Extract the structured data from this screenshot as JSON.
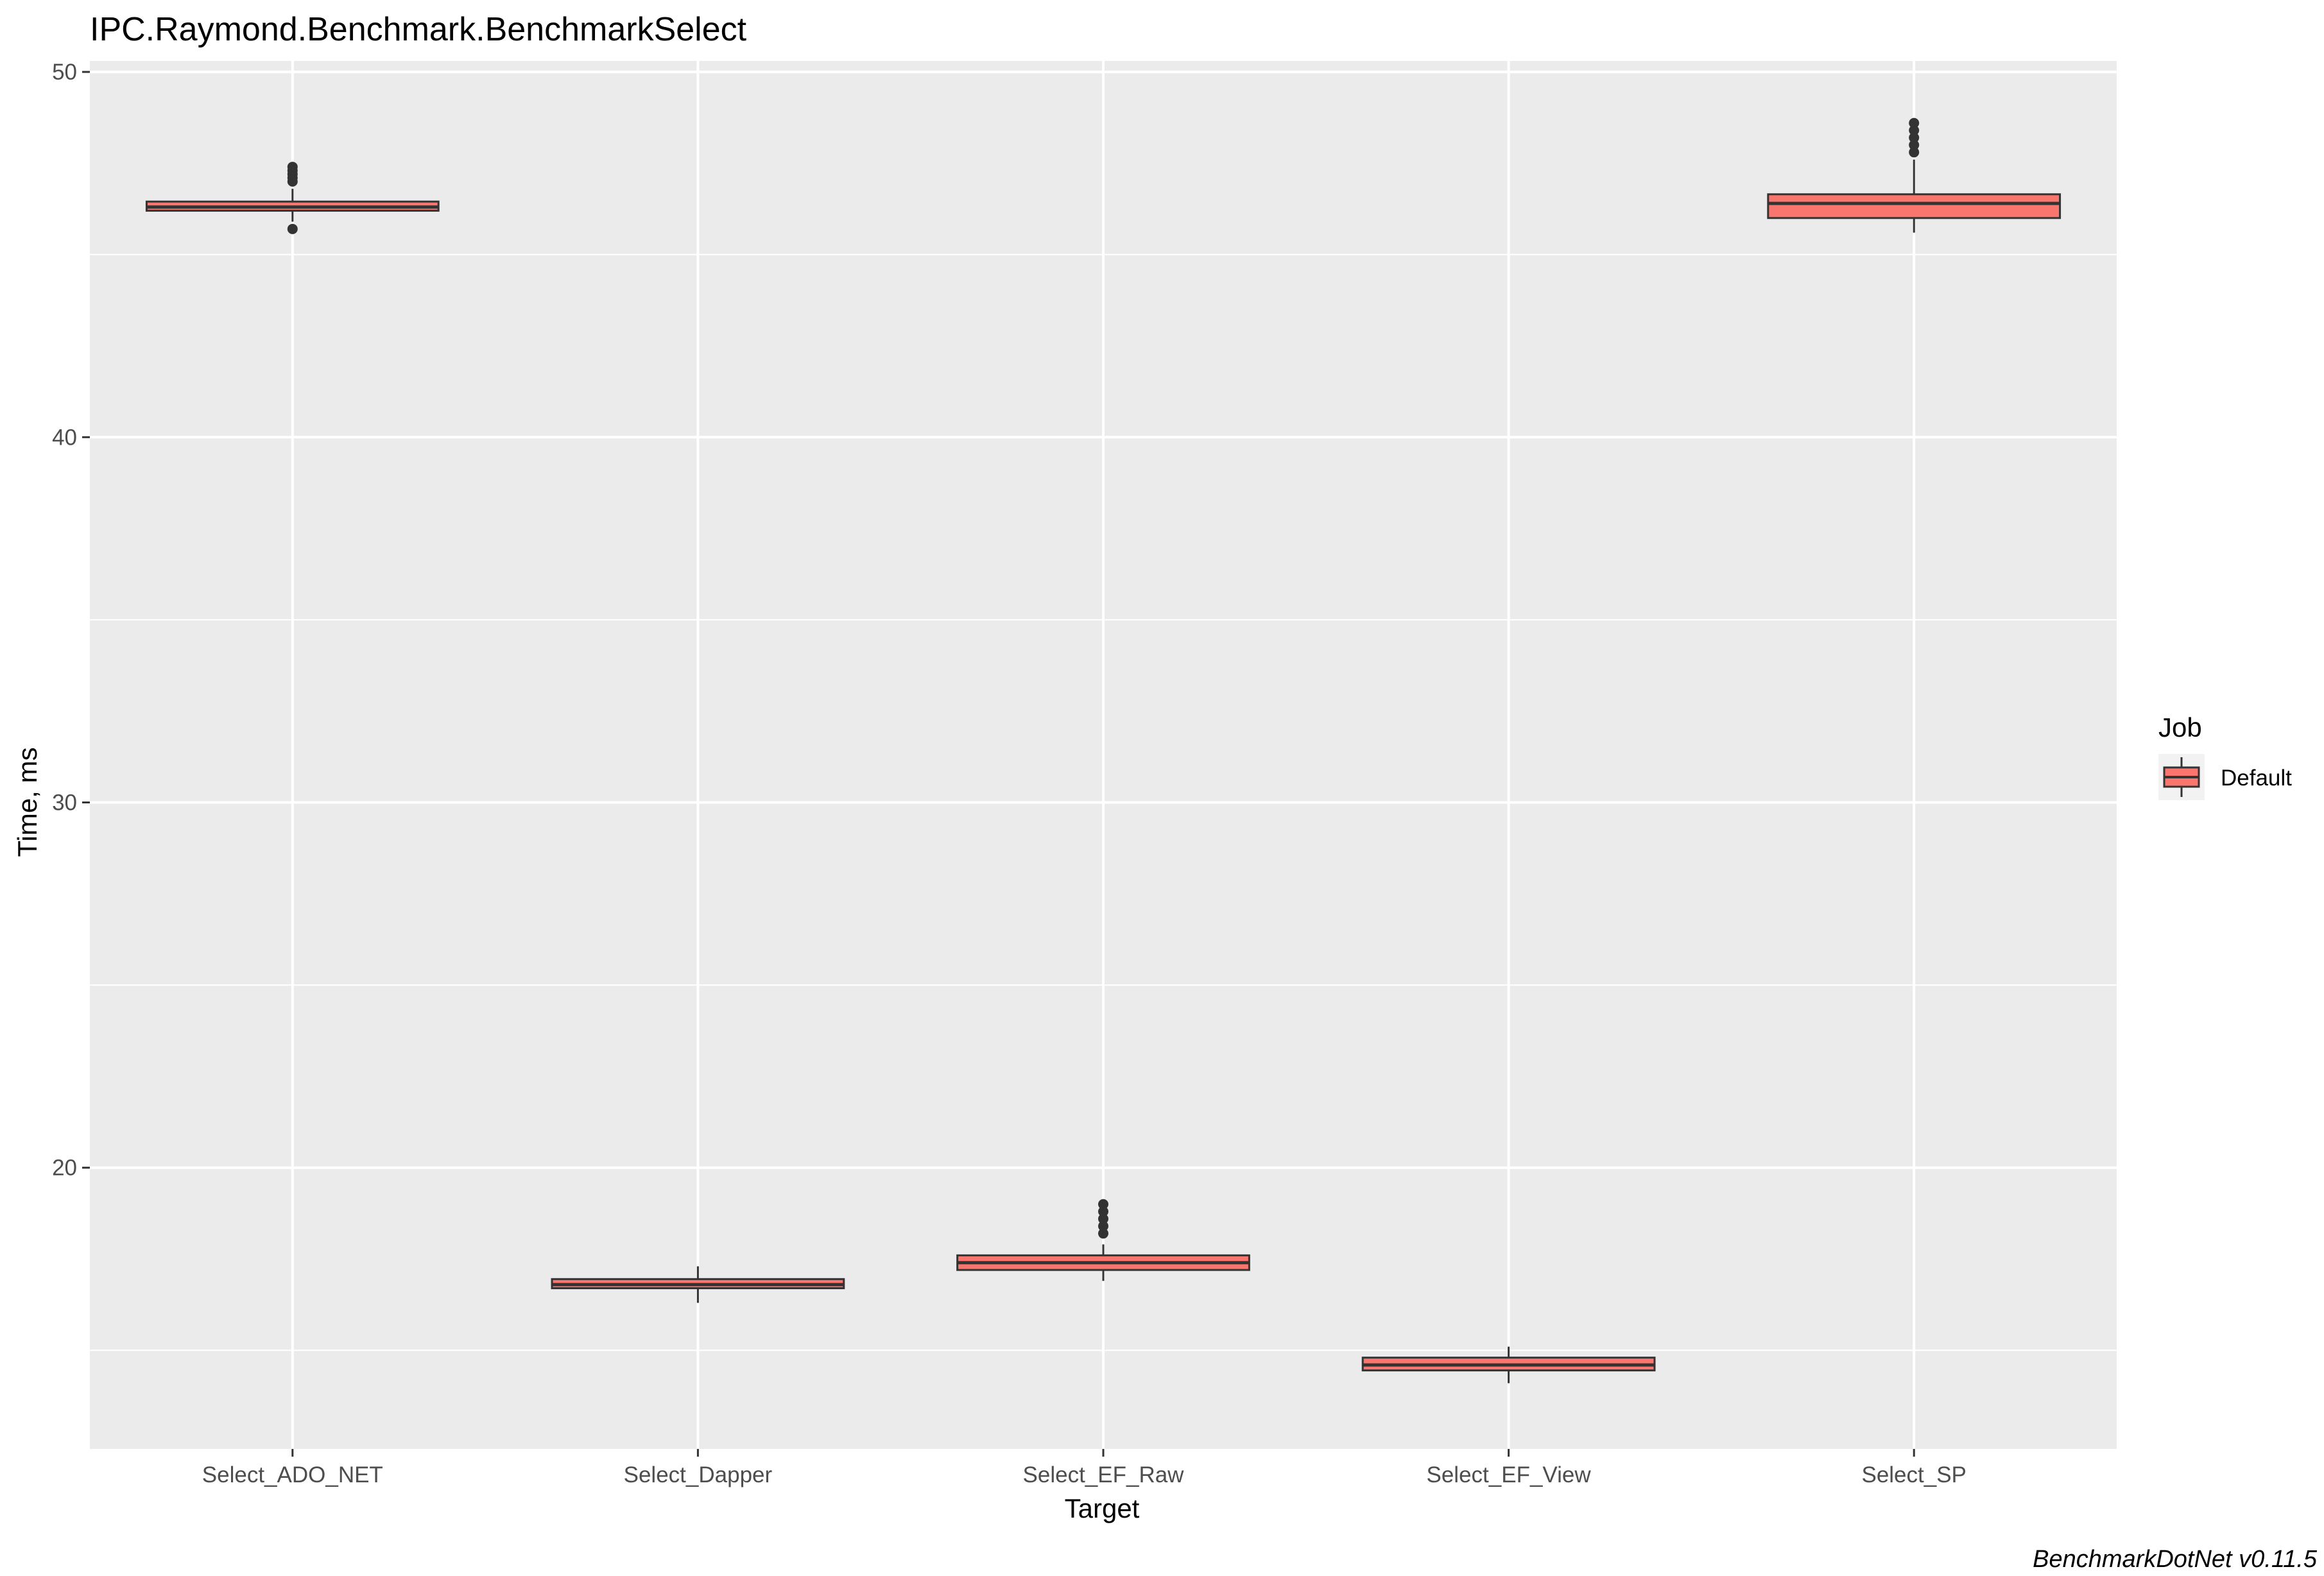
{
  "chart_data": {
    "type": "box",
    "title": "IPC.Raymond.Benchmark.BenchmarkSelect",
    "xlabel": "Target",
    "ylabel": "Time, ms",
    "ylim": [
      12.3,
      50.3
    ],
    "yticks": [
      20,
      30,
      40,
      50
    ],
    "grid": true,
    "legend": {
      "title": "Job",
      "position": "right",
      "entries": [
        "Default"
      ]
    },
    "caption": "BenchmarkDotNet v0.11.5",
    "colors": {
      "fill": "#F8766D",
      "outline": "#333333",
      "panel": "#EBEBEB",
      "grid": "#FFFFFF"
    },
    "categories": [
      "Select_ADO_NET",
      "Select_Dapper",
      "Select_EF_Raw",
      "Select_EF_View",
      "Select_SP"
    ],
    "series": [
      {
        "name": "Default",
        "boxes": [
          {
            "min": 45.9,
            "q1": 46.2,
            "median": 46.3,
            "q3": 46.45,
            "max": 46.8,
            "outliers": [
              45.7,
              47.0,
              47.1,
              47.2,
              47.3,
              47.4
            ]
          },
          {
            "min": 16.3,
            "q1": 16.7,
            "median": 16.8,
            "q3": 16.95,
            "max": 17.3,
            "outliers": []
          },
          {
            "min": 16.9,
            "q1": 17.2,
            "median": 17.4,
            "q3": 17.6,
            "max": 17.9,
            "outliers": [
              18.2,
              18.4,
              18.6,
              18.8,
              19.0
            ]
          },
          {
            "min": 14.1,
            "q1": 14.45,
            "median": 14.6,
            "q3": 14.8,
            "max": 15.1,
            "outliers": []
          },
          {
            "min": 45.6,
            "q1": 46.0,
            "median": 46.4,
            "q3": 46.65,
            "max": 47.6,
            "outliers": [
              47.8,
              48.0,
              48.2,
              48.4,
              48.6
            ]
          }
        ]
      }
    ]
  }
}
